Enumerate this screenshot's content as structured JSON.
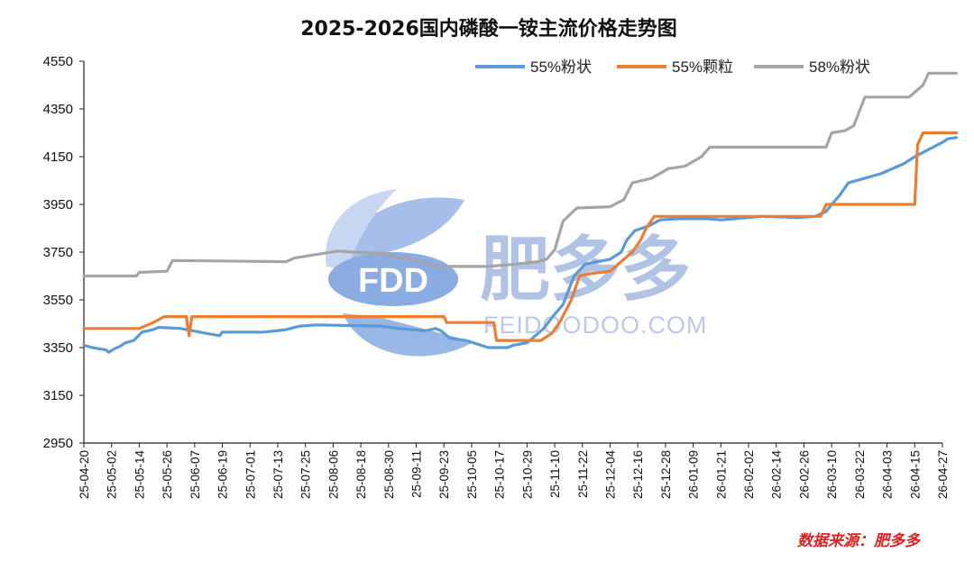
{
  "chart_data": {
    "type": "line",
    "title": "2025-2026国内磷酸一铵主流价格走势图",
    "xlabel": "",
    "ylabel": "",
    "ylim": [
      2950,
      4550
    ],
    "yticks": [
      2950,
      3150,
      3350,
      3550,
      3750,
      3950,
      4150,
      4350,
      4550
    ],
    "categories": [
      "25-04-20",
      "25-05-02",
      "25-05-14",
      "25-05-26",
      "25-06-07",
      "25-06-19",
      "25-07-01",
      "25-07-13",
      "25-07-25",
      "25-08-06",
      "25-08-18",
      "25-08-30",
      "25-09-11",
      "25-09-23",
      "25-10-05",
      "25-10-17",
      "25-10-29",
      "25-11-10",
      "25-11-22",
      "25-12-04",
      "25-12-16",
      "25-12-28",
      "26-01-09",
      "26-01-21",
      "26-02-02",
      "26-02-14",
      "26-02-26",
      "26-03-10",
      "26-03-22",
      "26-04-03",
      "26-04-15",
      "26-04-27"
    ],
    "legend_position": "top-right",
    "series": [
      {
        "name": "55%粉状",
        "color": "#5b9bd5",
        "points": [
          [
            0,
            3360
          ],
          [
            0.3,
            3350
          ],
          [
            0.8,
            3340
          ],
          [
            0.9,
            3330
          ],
          [
            1.1,
            3345
          ],
          [
            1.3,
            3355
          ],
          [
            1.5,
            3370
          ],
          [
            1.8,
            3380
          ],
          [
            2.1,
            3415
          ],
          [
            2.5,
            3425
          ],
          [
            2.7,
            3435
          ],
          [
            3.5,
            3430
          ],
          [
            4.4,
            3410
          ],
          [
            4.9,
            3400
          ],
          [
            5.0,
            3415
          ],
          [
            6.5,
            3415
          ],
          [
            7.3,
            3425
          ],
          [
            7.8,
            3440
          ],
          [
            8.4,
            3445
          ],
          [
            10.7,
            3440
          ],
          [
            11.4,
            3430
          ],
          [
            12.3,
            3420
          ],
          [
            12.7,
            3430
          ],
          [
            12.9,
            3420
          ],
          [
            13.2,
            3390
          ],
          [
            13.8,
            3380
          ],
          [
            14.6,
            3350
          ],
          [
            15.3,
            3350
          ],
          [
            15.5,
            3360
          ],
          [
            16.0,
            3370
          ],
          [
            16.3,
            3400
          ],
          [
            16.6,
            3430
          ],
          [
            16.8,
            3460
          ],
          [
            17.0,
            3490
          ],
          [
            17.3,
            3530
          ],
          [
            17.7,
            3650
          ],
          [
            18.1,
            3700
          ],
          [
            19.0,
            3720
          ],
          [
            19.4,
            3750
          ],
          [
            19.6,
            3800
          ],
          [
            19.9,
            3840
          ],
          [
            20.4,
            3860
          ],
          [
            20.8,
            3885
          ],
          [
            21.5,
            3890
          ],
          [
            22.5,
            3890
          ],
          [
            23.0,
            3885
          ],
          [
            23.5,
            3890
          ],
          [
            24.5,
            3900
          ],
          [
            25.8,
            3895
          ],
          [
            26.4,
            3900
          ],
          [
            26.8,
            3920
          ],
          [
            27.0,
            3950
          ],
          [
            27.3,
            3990
          ],
          [
            27.6,
            4040
          ],
          [
            28.2,
            4060
          ],
          [
            28.8,
            4080
          ],
          [
            29.6,
            4120
          ],
          [
            30.0,
            4150
          ],
          [
            30.5,
            4180
          ],
          [
            31.0,
            4210
          ],
          [
            31.2,
            4225
          ],
          [
            31.5,
            4230
          ]
        ]
      },
      {
        "name": "55%颗粒",
        "color": "#ed7d31",
        "points": [
          [
            0,
            3430
          ],
          [
            2.0,
            3430
          ],
          [
            2.5,
            3455
          ],
          [
            2.9,
            3480
          ],
          [
            3.7,
            3480
          ],
          [
            3.8,
            3400
          ],
          [
            3.9,
            3480
          ],
          [
            13.0,
            3480
          ],
          [
            13.1,
            3455
          ],
          [
            14.8,
            3455
          ],
          [
            14.9,
            3380
          ],
          [
            16.5,
            3380
          ],
          [
            16.9,
            3410
          ],
          [
            17.2,
            3460
          ],
          [
            17.6,
            3550
          ],
          [
            17.9,
            3650
          ],
          [
            18.3,
            3660
          ],
          [
            19.0,
            3670
          ],
          [
            19.5,
            3720
          ],
          [
            19.8,
            3750
          ],
          [
            20.1,
            3800
          ],
          [
            20.3,
            3850
          ],
          [
            20.6,
            3900
          ],
          [
            26.6,
            3900
          ],
          [
            26.8,
            3950
          ],
          [
            30.0,
            3950
          ],
          [
            30.1,
            4200
          ],
          [
            30.3,
            4250
          ],
          [
            31.5,
            4250
          ]
        ]
      },
      {
        "name": "58%粉状",
        "color": "#a5a5a5",
        "points": [
          [
            0,
            3650
          ],
          [
            1.9,
            3650
          ],
          [
            2.0,
            3665
          ],
          [
            3.0,
            3670
          ],
          [
            3.2,
            3715
          ],
          [
            7.3,
            3710
          ],
          [
            7.6,
            3725
          ],
          [
            8.4,
            3740
          ],
          [
            9.2,
            3755
          ],
          [
            9.7,
            3750
          ],
          [
            10.9,
            3745
          ],
          [
            11.4,
            3725
          ],
          [
            11.9,
            3720
          ],
          [
            12.7,
            3690
          ],
          [
            14.6,
            3690
          ],
          [
            15.6,
            3700
          ],
          [
            16.4,
            3710
          ],
          [
            16.7,
            3720
          ],
          [
            17.0,
            3760
          ],
          [
            17.3,
            3880
          ],
          [
            17.8,
            3935
          ],
          [
            19.0,
            3940
          ],
          [
            19.5,
            3970
          ],
          [
            19.8,
            4040
          ],
          [
            20.5,
            4060
          ],
          [
            21.1,
            4100
          ],
          [
            21.7,
            4110
          ],
          [
            22.3,
            4150
          ],
          [
            22.6,
            4190
          ],
          [
            26.8,
            4190
          ],
          [
            27.0,
            4250
          ],
          [
            27.5,
            4260
          ],
          [
            27.8,
            4280
          ],
          [
            28.2,
            4400
          ],
          [
            29.8,
            4400
          ],
          [
            30.3,
            4450
          ],
          [
            30.5,
            4500
          ],
          [
            31.5,
            4500
          ]
        ]
      }
    ]
  },
  "watermark": {
    "logo_text": "FDD",
    "brand": "肥多多",
    "url": "FEIDOODOO.COM"
  },
  "source_note": "数据来源：肥多多"
}
